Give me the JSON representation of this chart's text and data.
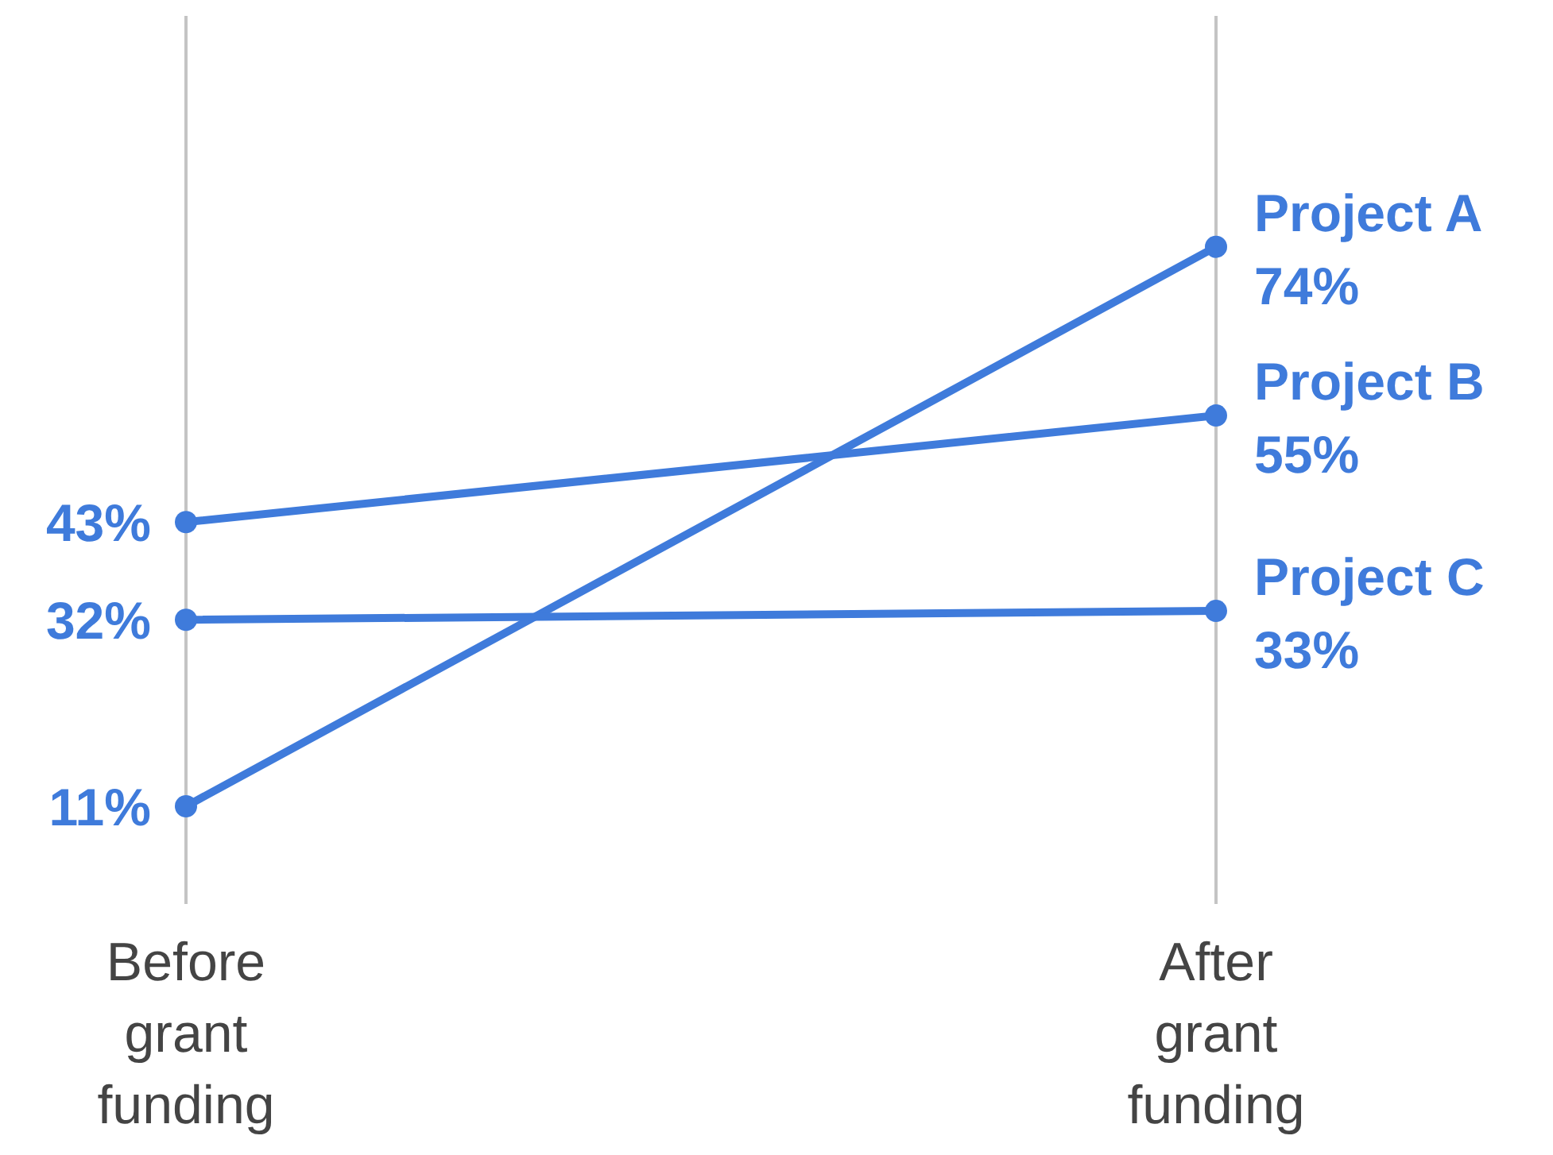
{
  "chart_data": {
    "type": "line",
    "categories": [
      "Before grant funding",
      "After grant funding"
    ],
    "series": [
      {
        "name": "Project A",
        "color": "#3f7bdb",
        "values": [
          11,
          74
        ],
        "value_labels": [
          "11%",
          "74%"
        ]
      },
      {
        "name": "Project B",
        "color": "#3f7bdb",
        "values": [
          43,
          55
        ],
        "value_labels": [
          "43%",
          "55%"
        ]
      },
      {
        "name": "Project C",
        "color": "#3f7bdb",
        "values": [
          32,
          33
        ],
        "value_labels": [
          "32%",
          "33%"
        ]
      }
    ],
    "ylim": [
      0,
      100
    ],
    "grid": "x",
    "tick_labels": "x",
    "marker": "circle",
    "line_style": "solid",
    "legend": false
  }
}
